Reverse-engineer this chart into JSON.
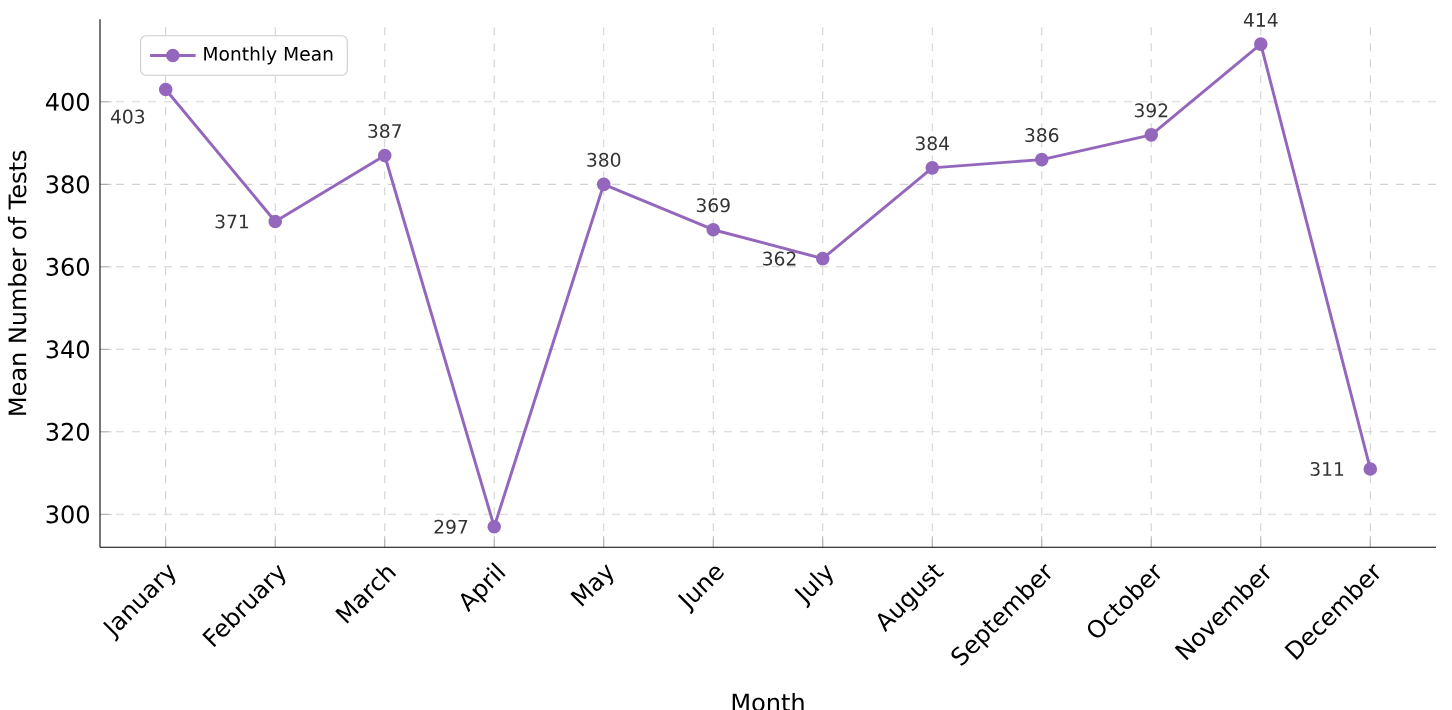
{
  "chart_data": {
    "type": "line",
    "xlabel": "Month",
    "ylabel": "Mean Number of Tests",
    "categories": [
      "January",
      "February",
      "March",
      "April",
      "May",
      "June",
      "July",
      "August",
      "September",
      "October",
      "November",
      "December"
    ],
    "series": [
      {
        "name": "Monthly Mean",
        "color": "#9467bd",
        "values": [
          403,
          371,
          387,
          297,
          380,
          369,
          362,
          384,
          386,
          392,
          414,
          311
        ]
      }
    ],
    "ylim": [
      292,
      420
    ],
    "yticks": [
      300,
      320,
      340,
      360,
      380,
      400
    ],
    "grid": true,
    "legend": "top left",
    "marker": "circle",
    "line_style": "solid",
    "data_labels": true
  }
}
